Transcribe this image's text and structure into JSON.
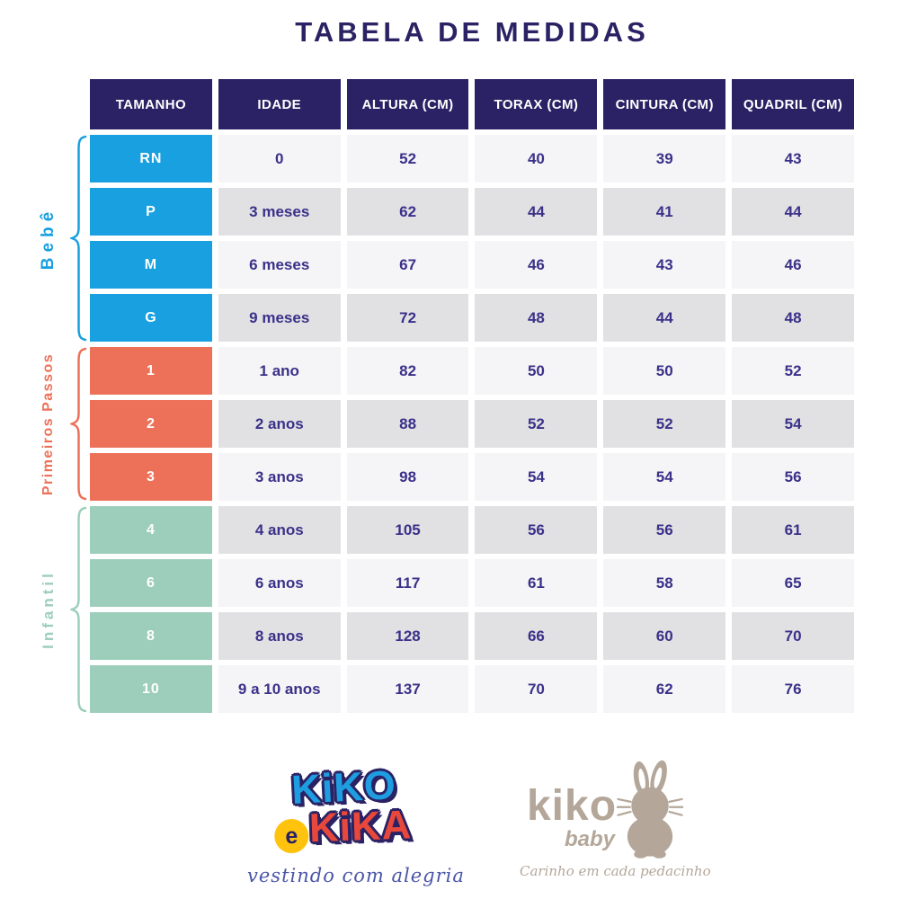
{
  "title": "TABELA DE MEDIDAS",
  "chart_data": {
    "type": "table",
    "title": "TABELA DE MEDIDAS",
    "columns": [
      "TAMANHO",
      "IDADE",
      "ALTURA (CM)",
      "TORAX (CM)",
      "CINTURA (CM)",
      "QUADRIL (CM)"
    ],
    "groups": [
      {
        "label": "Bebê",
        "color": "#18A0E0",
        "rows": [
          [
            "RN",
            "0",
            "52",
            "40",
            "39",
            "43"
          ],
          [
            "P",
            "3 meses",
            "62",
            "44",
            "41",
            "44"
          ],
          [
            "M",
            "6 meses",
            "67",
            "46",
            "43",
            "46"
          ],
          [
            "G",
            "9 meses",
            "72",
            "48",
            "44",
            "48"
          ]
        ]
      },
      {
        "label": "Primeiros Passos",
        "color": "#ED7158",
        "rows": [
          [
            "1",
            "1 ano",
            "82",
            "50",
            "50",
            "52"
          ],
          [
            "2",
            "2 anos",
            "88",
            "52",
            "52",
            "54"
          ],
          [
            "3",
            "3 anos",
            "98",
            "54",
            "54",
            "56"
          ]
        ]
      },
      {
        "label": "Infantil",
        "color": "#9CCEBB",
        "rows": [
          [
            "4",
            "4 anos",
            "105",
            "56",
            "56",
            "61"
          ],
          [
            "6",
            "6 anos",
            "117",
            "61",
            "58",
            "65"
          ],
          [
            "8",
            "8 anos",
            "128",
            "66",
            "60",
            "70"
          ],
          [
            "10",
            "9 a 10 anos",
            "137",
            "70",
            "62",
            "76"
          ]
        ]
      }
    ]
  },
  "footer": {
    "kiko_e_kika": {
      "word1": "KiKO",
      "connector": "e",
      "word2": "KiKA",
      "tagline": "vestindo com alegria"
    },
    "kiko_baby": {
      "name": "kiko",
      "sub": "baby",
      "tagline": "Carinho em cada pedacinho"
    }
  },
  "colors": {
    "navy": "#2A2264",
    "value_text": "#3A3189",
    "blue": "#18A0E0",
    "coral": "#ED7158",
    "mint": "#9CCEBB",
    "row_light": "#F5F4F6",
    "row_dark": "#E1E0E3",
    "yellow": "#FFC20D",
    "red": "#E8483B",
    "taupe": "#B4A79A",
    "script_blue": "#4A55A8"
  }
}
